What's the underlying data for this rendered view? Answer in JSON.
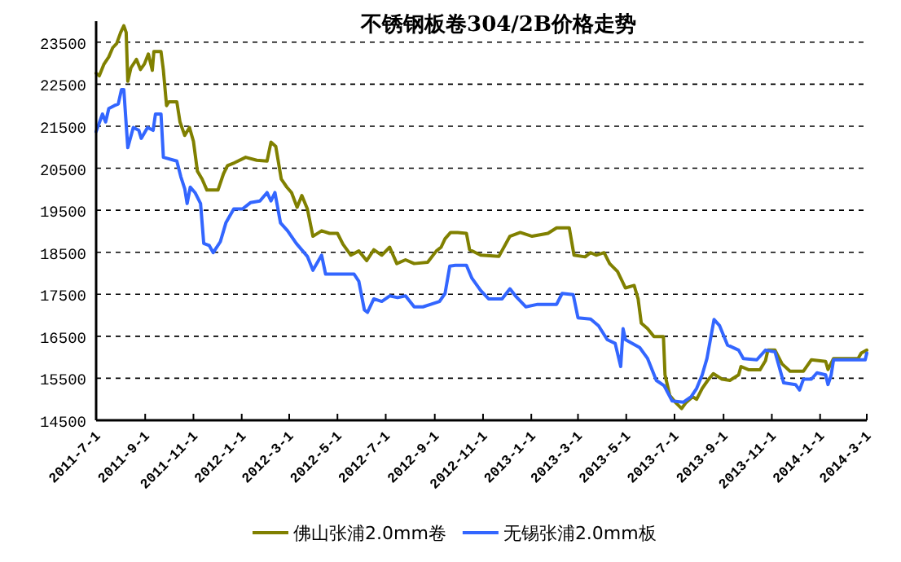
{
  "chart_data": {
    "type": "line",
    "title": "不锈钢板卷304/2B价格走势",
    "xlim": [
      "2011-07-01",
      "2014-03-01"
    ],
    "xticks": [
      {
        "value": "2011-07-01",
        "label": "2011-7-1"
      },
      {
        "value": "2011-09-01",
        "label": "2011-9-1"
      },
      {
        "value": "2011-11-01",
        "label": "2011-11-1"
      },
      {
        "value": "2012-01-01",
        "label": "2012-1-1"
      },
      {
        "value": "2012-03-01",
        "label": "2012-3-1"
      },
      {
        "value": "2012-05-01",
        "label": "2012-5-1"
      },
      {
        "value": "2012-07-01",
        "label": "2012-7-1"
      },
      {
        "value": "2012-09-01",
        "label": "2012-9-1"
      },
      {
        "value": "2012-11-01",
        "label": "2012-11-1"
      },
      {
        "value": "2013-01-01",
        "label": "2013-1-1"
      },
      {
        "value": "2013-03-01",
        "label": "2013-3-1"
      },
      {
        "value": "2013-05-01",
        "label": "2013-5-1"
      },
      {
        "value": "2013-07-01",
        "label": "2013-7-1"
      },
      {
        "value": "2013-09-01",
        "label": "2013-9-1"
      },
      {
        "value": "2013-11-01",
        "label": "2013-11-1"
      },
      {
        "value": "2014-01-01",
        "label": "2014-1-1"
      },
      {
        "value": "2014-03-01",
        "label": "2014-3-1"
      }
    ],
    "ylim": [
      14500,
      24000
    ],
    "yticks": [
      14500,
      15500,
      16500,
      17500,
      18500,
      19500,
      20500,
      21500,
      22500,
      23500
    ],
    "grid": "y",
    "legend": "bottom",
    "series": [
      {
        "name": "佛山张浦2.0mm卷",
        "color": "#808000",
        "x": [
          "2011-07-01",
          "2011-07-05",
          "2011-07-11",
          "2011-07-17",
          "2011-07-22",
          "2011-07-27",
          "2011-08-01",
          "2011-08-05",
          "2011-08-08",
          "2011-08-10",
          "2011-08-14",
          "2011-08-21",
          "2011-08-26",
          "2011-08-31",
          "2011-09-05",
          "2011-09-10",
          "2011-09-12",
          "2011-09-21",
          "2011-09-24",
          "2011-09-28",
          "2011-10-01",
          "2011-10-11",
          "2011-10-15",
          "2011-10-21",
          "2011-10-27",
          "2011-11-01",
          "2011-11-06",
          "2011-11-12",
          "2011-11-18",
          "2011-12-02",
          "2011-12-09",
          "2011-12-14",
          "2011-12-23",
          "2012-01-06",
          "2012-01-20",
          "2012-02-02",
          "2012-02-07",
          "2012-02-13",
          "2012-02-20",
          "2012-02-27",
          "2012-03-04",
          "2012-03-11",
          "2012-03-17",
          "2012-03-24",
          "2012-03-31",
          "2012-04-11",
          "2012-04-21",
          "2012-05-01",
          "2012-05-08",
          "2012-05-18",
          "2012-05-28",
          "2012-06-07",
          "2012-06-16",
          "2012-06-26",
          "2012-07-06",
          "2012-07-15",
          "2012-07-26",
          "2012-08-06",
          "2012-08-23",
          "2012-09-03",
          "2012-09-09",
          "2012-09-14",
          "2012-09-21",
          "2012-09-30",
          "2012-10-11",
          "2012-10-15",
          "2012-10-29",
          "2012-11-21",
          "2012-12-05",
          "2012-12-18",
          "2013-01-02",
          "2013-01-22",
          "2013-02-02",
          "2013-02-18",
          "2013-02-24",
          "2013-03-10",
          "2013-03-17",
          "2013-03-24",
          "2013-04-03",
          "2013-04-10",
          "2013-04-20",
          "2013-04-30",
          "2013-05-11",
          "2013-05-16",
          "2013-05-20",
          "2013-05-28",
          "2013-06-05",
          "2013-06-17",
          "2013-06-19",
          "2013-06-25",
          "2013-07-02",
          "2013-07-10",
          "2013-07-15",
          "2013-07-24",
          "2013-07-29",
          "2013-08-05",
          "2013-08-12",
          "2013-08-19",
          "2013-08-30",
          "2013-09-09",
          "2013-09-20",
          "2013-09-23",
          "2013-10-03",
          "2013-10-17",
          "2013-10-24",
          "2013-10-27",
          "2013-11-05",
          "2013-11-14",
          "2013-11-24",
          "2013-12-11",
          "2013-12-21",
          "2014-01-08",
          "2014-01-11",
          "2014-01-18",
          "2014-02-18",
          "2014-02-22",
          "2014-03-01"
        ],
        "values": [
          22760,
          22700,
          22980,
          23150,
          23370,
          23470,
          23730,
          23890,
          23730,
          22570,
          22890,
          23090,
          22850,
          22980,
          23220,
          22830,
          23280,
          23280,
          22830,
          21990,
          22080,
          22080,
          21600,
          21280,
          21470,
          21140,
          20430,
          20240,
          19980,
          19980,
          20370,
          20560,
          20630,
          20760,
          20690,
          20670,
          21120,
          21020,
          20240,
          20050,
          19920,
          19570,
          19850,
          19530,
          18880,
          19010,
          18950,
          18950,
          18690,
          18430,
          18530,
          18300,
          18560,
          18430,
          18620,
          18230,
          18320,
          18230,
          18260,
          18530,
          18620,
          18820,
          18970,
          18970,
          18950,
          18560,
          18430,
          18400,
          18880,
          18970,
          18880,
          18950,
          19080,
          19080,
          18430,
          18390,
          18490,
          18430,
          18490,
          18230,
          18040,
          17650,
          17710,
          17390,
          16810,
          16680,
          16490,
          16490,
          15580,
          15090,
          14930,
          14780,
          14910,
          15060,
          15000,
          15260,
          15450,
          15610,
          15480,
          15450,
          15580,
          15780,
          15700,
          15700,
          15920,
          16170,
          16170,
          15840,
          15670,
          15670,
          15940,
          15900,
          15710,
          15970,
          15970,
          16100,
          16170
        ]
      },
      {
        "name": "无锡张浦2.0mm板",
        "color": "#3366ff",
        "x": [
          "2011-07-01",
          "2011-07-09",
          "2011-07-13",
          "2011-07-17",
          "2011-07-24",
          "2011-07-29",
          "2011-08-02",
          "2011-08-05",
          "2011-08-10",
          "2011-08-17",
          "2011-08-24",
          "2011-08-27",
          "2011-09-04",
          "2011-09-11",
          "2011-09-14",
          "2011-09-21",
          "2011-09-24",
          "2011-10-11",
          "2011-10-16",
          "2011-10-21",
          "2011-10-24",
          "2011-10-28",
          "2011-11-03",
          "2011-11-10",
          "2011-11-14",
          "2011-11-21",
          "2011-11-26",
          "2011-12-05",
          "2011-12-12",
          "2011-12-22",
          "2012-01-02",
          "2012-01-12",
          "2012-01-24",
          "2012-02-02",
          "2012-02-07",
          "2012-02-12",
          "2012-02-19",
          "2012-02-28",
          "2012-03-10",
          "2012-03-24",
          "2012-03-31",
          "2012-04-11",
          "2012-04-16",
          "2012-05-22",
          "2012-05-28",
          "2012-06-04",
          "2012-06-08",
          "2012-06-16",
          "2012-06-26",
          "2012-07-06",
          "2012-07-16",
          "2012-07-26",
          "2012-08-06",
          "2012-08-17",
          "2012-08-27",
          "2012-09-07",
          "2012-09-14",
          "2012-09-20",
          "2012-09-27",
          "2012-10-11",
          "2012-10-18",
          "2012-10-29",
          "2012-11-08",
          "2012-11-25",
          "2012-12-05",
          "2012-12-12",
          "2012-12-25",
          "2013-01-09",
          "2013-02-02",
          "2013-02-09",
          "2013-02-23",
          "2013-03-01",
          "2013-03-17",
          "2013-03-27",
          "2013-04-07",
          "2013-04-17",
          "2013-04-24",
          "2013-04-27",
          "2013-04-30",
          "2013-05-18",
          "2013-05-28",
          "2013-06-08",
          "2013-06-18",
          "2013-06-28",
          "2013-07-12",
          "2013-07-22",
          "2013-07-29",
          "2013-08-05",
          "2013-08-11",
          "2013-08-16",
          "2013-08-20",
          "2013-08-27",
          "2013-09-06",
          "2013-09-20",
          "2013-09-26",
          "2013-10-13",
          "2013-10-24",
          "2013-11-05",
          "2013-11-16",
          "2013-12-01",
          "2013-12-06",
          "2013-12-11",
          "2013-12-21",
          "2013-12-28",
          "2014-01-08",
          "2014-01-11",
          "2014-01-15",
          "2014-01-18",
          "2014-02-27",
          "2014-03-01"
        ],
        "values": [
          21370,
          21790,
          21600,
          21920,
          21990,
          22030,
          22370,
          22370,
          20990,
          21470,
          21400,
          21210,
          21470,
          21400,
          21790,
          21790,
          20760,
          20670,
          20300,
          20010,
          19660,
          20050,
          19920,
          19660,
          18710,
          18660,
          18490,
          18750,
          19200,
          19530,
          19530,
          19680,
          19720,
          19920,
          19720,
          19920,
          19200,
          19010,
          18710,
          18400,
          18070,
          18430,
          17980,
          17980,
          17810,
          17130,
          17070,
          17390,
          17330,
          17460,
          17420,
          17460,
          17200,
          17200,
          17260,
          17330,
          17520,
          18170,
          18190,
          18190,
          17880,
          17590,
          17390,
          17390,
          17630,
          17460,
          17200,
          17260,
          17260,
          17520,
          17490,
          16940,
          16910,
          16750,
          16420,
          16330,
          15780,
          16680,
          16420,
          16230,
          15970,
          15450,
          15320,
          14960,
          14930,
          15060,
          15260,
          15580,
          15970,
          16490,
          16900,
          16750,
          16290,
          16170,
          15970,
          15940,
          16170,
          16130,
          15390,
          15350,
          15220,
          15480,
          15480,
          15630,
          15580,
          15350,
          15580,
          15940,
          15940,
          16100
        ]
      }
    ]
  }
}
